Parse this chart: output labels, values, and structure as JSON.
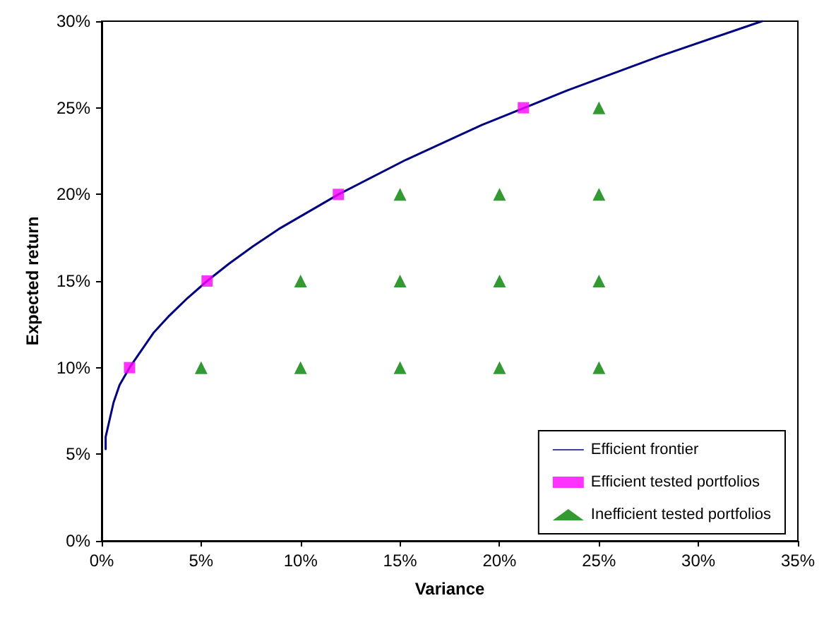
{
  "chart_data": {
    "type": "line",
    "xlabel": "Variance",
    "ylabel": "Expected return",
    "xlim": [
      0,
      35
    ],
    "xticks": [
      {
        "value": 0,
        "label": "0%"
      },
      {
        "value": 5,
        "label": "5%"
      },
      {
        "value": 10,
        "label": "10%"
      },
      {
        "value": 15,
        "label": "15%"
      },
      {
        "value": 20,
        "label": "20%"
      },
      {
        "value": 25,
        "label": "25%"
      },
      {
        "value": 30,
        "label": "30%"
      },
      {
        "value": 35,
        "label": "35%"
      }
    ],
    "ylim": [
      0,
      30
    ],
    "yticks": [
      {
        "value": 0,
        "label": "0%"
      },
      {
        "value": 5,
        "label": "5%"
      },
      {
        "value": 10,
        "label": "10%"
      },
      {
        "value": 15,
        "label": "15%"
      },
      {
        "value": 20,
        "label": "20%"
      },
      {
        "value": 25,
        "label": "25%"
      },
      {
        "value": 30,
        "label": "30%"
      }
    ],
    "grid": false,
    "legend": "bottom right",
    "series": [
      {
        "name": "Efficient frontier",
        "type": "line",
        "color": "#000080",
        "marker": "none",
        "line_style": "solid",
        "x": [
          0.2,
          0.2,
          0.4,
          0.6,
          0.9,
          1.4,
          2.0,
          2.6,
          3.4,
          4.3,
          5.3,
          6.4,
          7.6,
          8.9,
          11.9,
          15.3,
          19.1,
          23.4,
          28.1,
          33.2
        ],
        "values": [
          5.3,
          6,
          7,
          8,
          9,
          10,
          11,
          12,
          13,
          14,
          15,
          16,
          17,
          18,
          20,
          22,
          24,
          26,
          28,
          30
        ]
      },
      {
        "name": "Efficient tested portfolios",
        "type": "scatter",
        "color": "#ff00ff",
        "marker": "square",
        "x": [
          1.4,
          5.3,
          11.9,
          21.2
        ],
        "values": [
          10,
          15,
          20,
          25
        ]
      },
      {
        "name": "Inefficient tested portfolios",
        "type": "scatter",
        "color": "#008000",
        "marker": "triangle",
        "x": [
          5,
          10,
          15,
          20,
          25,
          10,
          15,
          20,
          25,
          15,
          20,
          25,
          25
        ],
        "values": [
          10,
          10,
          10,
          10,
          10,
          15,
          15,
          15,
          15,
          20,
          20,
          20,
          25
        ]
      }
    ]
  }
}
